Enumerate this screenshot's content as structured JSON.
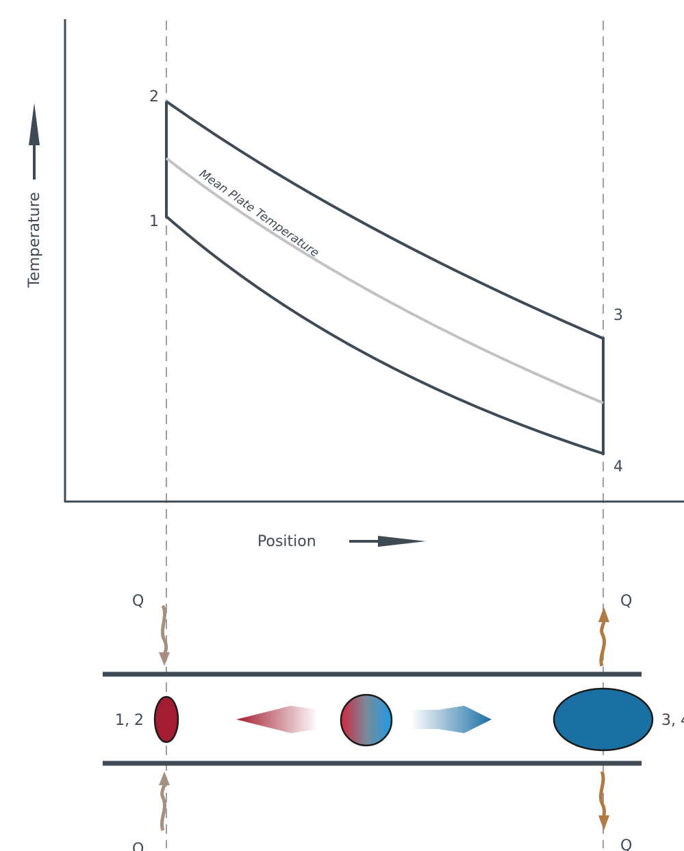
{
  "axes": {
    "y_label": "Temperature",
    "x_label": "Position"
  },
  "curves": {
    "mean_plate_label": "Mean Plate Temperature"
  },
  "state_points": {
    "p1": "1",
    "p2": "2",
    "p3": "3",
    "p4": "4"
  },
  "heat_flow": {
    "label": "Q"
  },
  "channel": {
    "left_state_label": "1, 2",
    "right_state_label": "3, 4"
  },
  "colors": {
    "line_dark": "#3e4a54",
    "mean_line": "#c0c2c4",
    "guide_dash": "#9a9ea2",
    "hot_red": "#a31d32",
    "cold_blue": "#1a6fa3",
    "heat_in_arrow": "#a68f7e",
    "heat_out_arrow": "#b07a46"
  }
}
